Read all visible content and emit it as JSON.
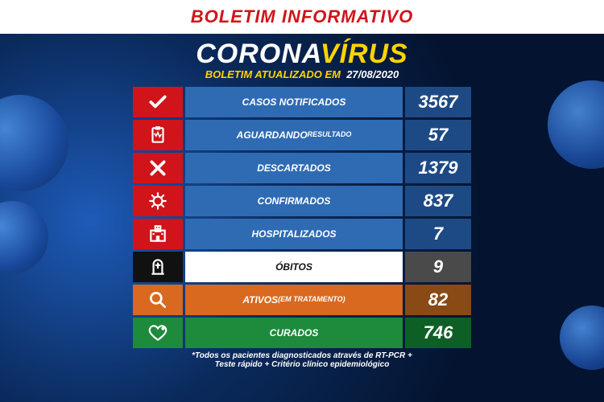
{
  "header": {
    "title": "BOLETIM INFORMATIVO"
  },
  "title": {
    "part1": "CORONA",
    "part2": "VÍRUS"
  },
  "subtitle": {
    "prefix": "BOLETIM ATUALIZADO EM",
    "date": "27/08/2020"
  },
  "colors": {
    "red": "#d0141a",
    "blue": "#2e6bb3",
    "blue_dark": "#1d4a85",
    "black": "#111111",
    "white": "#ffffff",
    "gray": "#4a4a4a",
    "orange": "#d9691e",
    "brown": "#8a4a15",
    "green": "#1e8a3c",
    "green_dark": "#0e5f26"
  },
  "rows": [
    {
      "icon": "check",
      "label": "CASOS NOTIFICADOS",
      "value": "3567",
      "icon_bg": "#d0141a",
      "label_bg": "#2e6bb3",
      "value_bg": "#1d4a85"
    },
    {
      "icon": "clipboard",
      "label": "AGUARDANDO",
      "sublabel": "RESULTADO",
      "value": "57",
      "icon_bg": "#d0141a",
      "label_bg": "#2e6bb3",
      "value_bg": "#1d4a85"
    },
    {
      "icon": "x",
      "label": "DESCARTADOS",
      "value": "1379",
      "icon_bg": "#d0141a",
      "label_bg": "#2e6bb3",
      "value_bg": "#1d4a85"
    },
    {
      "icon": "virus",
      "label": "CONFIRMADOS",
      "value": "837",
      "icon_bg": "#d0141a",
      "label_bg": "#2e6bb3",
      "value_bg": "#1d4a85"
    },
    {
      "icon": "hospital",
      "label": "HOSPITALIZADOS",
      "value": "7",
      "icon_bg": "#d0141a",
      "label_bg": "#2e6bb3",
      "value_bg": "#1d4a85"
    },
    {
      "icon": "grave",
      "label": "ÓBITOS",
      "value": "9",
      "icon_bg": "#111111",
      "label_bg": "#ffffff",
      "value_bg": "#4a4a4a",
      "label_color": "#111111"
    },
    {
      "icon": "search",
      "label": "ATIVOS",
      "sublabel": "(EM TRATAMENTO)",
      "value": "82",
      "icon_bg": "#d9691e",
      "label_bg": "#d9691e",
      "value_bg": "#8a4a15"
    },
    {
      "icon": "heart",
      "label": "CURADOS",
      "value": "746",
      "icon_bg": "#1e8a3c",
      "label_bg": "#1e8a3c",
      "value_bg": "#0e5f26"
    }
  ],
  "footnote": {
    "line1": "*Todos os pacientes diagnosticados através de RT-PCR +",
    "line2": "Teste rápido + Critério clínico epidemiológico"
  }
}
